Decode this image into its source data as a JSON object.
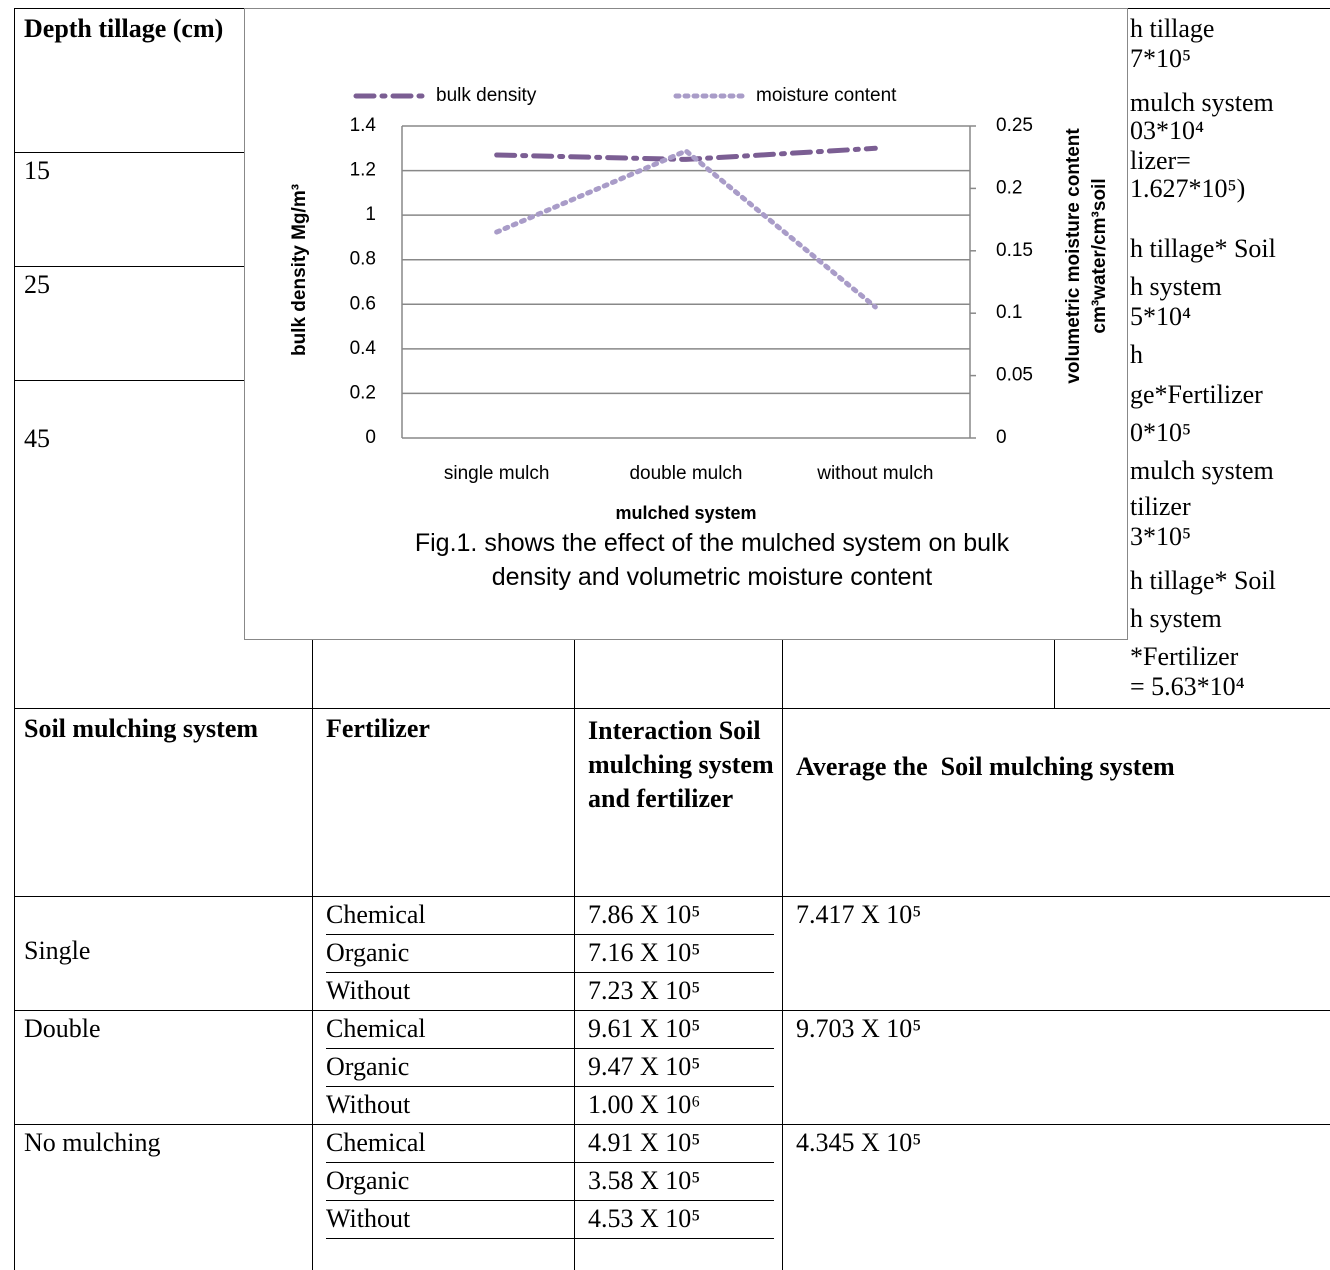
{
  "top_table": {
    "header": "Depth tillage (cm)",
    "depths": [
      "15",
      "25",
      "45"
    ],
    "right_column": [
      "h tillage",
      "7*10⁵",
      "mulch system",
      "03*10⁴",
      "lizer=",
      "1.627*10⁵)",
      "h tillage* Soil",
      "h system",
      "5*10⁴",
      "h",
      "ge*Fertilizer",
      "0*10⁵",
      "mulch system",
      "tilizer",
      "3*10⁵",
      "h tillage* Soil",
      "h system",
      "*Fertilizer",
      "= 5.63*10⁴"
    ]
  },
  "chart_data": {
    "type": "line",
    "x_label": "mulched system",
    "y_label": "bulk density Mg/m³",
    "y2_label": [
      "volumetric moisture content",
      "cm³water/cm³soil"
    ],
    "categories": [
      "single mulch",
      "double mulch",
      "without mulch"
    ],
    "series": [
      {
        "name": "bulk density",
        "color": "#7b5e93",
        "values": [
          1.27,
          1.25,
          1.3
        ]
      },
      {
        "name": "moisture content",
        "color": "#a99cc8",
        "axis": "y2",
        "values": [
          0.165,
          0.23,
          0.105
        ]
      }
    ],
    "ylim": [
      0,
      1.4
    ],
    "yticks": [
      0,
      0.2,
      0.4,
      0.6,
      0.8,
      1,
      1.2,
      1.4
    ],
    "y2lim": [
      0,
      0.25
    ],
    "y2ticks": [
      0,
      0.05,
      0.1,
      0.15,
      0.2,
      0.25
    ],
    "grid": true,
    "legend": "top"
  },
  "caption": "Fig.1. shows the effect of the mulched system on bulk density and volumetric moisture content",
  "bottom_table": {
    "headers": [
      "Soil mulching system",
      "Fertilizer",
      "Interaction Soil mulching system and fertilizer",
      "Average the  Soil mulching system"
    ],
    "groups": [
      {
        "system": "Single",
        "average": "7.417 X 10⁵",
        "rows": [
          [
            "Chemical",
            "7.86 X 10⁵"
          ],
          [
            "Organic",
            "7.16 X 10⁵"
          ],
          [
            "Without",
            "7.23 X 10⁵"
          ]
        ]
      },
      {
        "system": "Double",
        "average": "9.703 X 10⁵",
        "rows": [
          [
            "Chemical",
            "9.61 X 10⁵"
          ],
          [
            "Organic",
            "9.47 X 10⁵"
          ],
          [
            "Without",
            "1.00 X 10⁶"
          ]
        ]
      },
      {
        "system": "No mulching",
        "average": "4.345 X 10⁵",
        "rows": [
          [
            "Chemical",
            "4.91 X 10⁵"
          ],
          [
            "Organic",
            "3.58 X 10⁵"
          ],
          [
            "Without",
            "4.53 X 10⁵"
          ]
        ]
      }
    ]
  }
}
